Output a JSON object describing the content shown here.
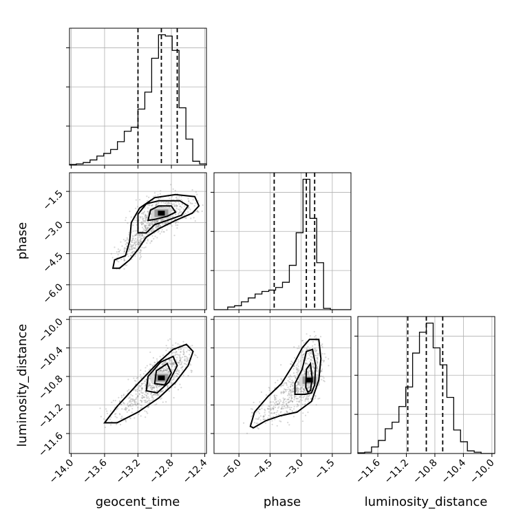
{
  "chart_data": {
    "type": "corner",
    "parameters": [
      "geocent_time",
      "phase",
      "luminosity_distance"
    ],
    "axis_labels": {
      "geocent_time": "geocent_time",
      "phase": "phase",
      "luminosity_distance": "luminosity_distance"
    },
    "ranges": {
      "geocent_time": [
        -14.02,
        -12.38
      ],
      "phase": [
        -7.2,
        -0.6
      ],
      "luminosity_distance": [
        -11.88,
        -9.96
      ]
    },
    "ticks": {
      "geocent_time": [
        -14.0,
        -13.6,
        -13.2,
        -12.8,
        -12.4
      ],
      "phase": [
        -6.0,
        -4.5,
        -3.0,
        -1.5
      ],
      "luminosity_distance": [
        -11.6,
        -11.2,
        -10.8,
        -10.4,
        -10.0
      ]
    },
    "tick_labels": {
      "geocent_time": [
        "−14.0",
        "−13.6",
        "−13.2",
        "−12.8",
        "−12.4"
      ],
      "phase": [
        "−6.0",
        "−4.5",
        "−3.0",
        "−1.5"
      ],
      "luminosity_distance": [
        "−11.6",
        "−11.2",
        "−10.8",
        "−10.4",
        "−10.0"
      ]
    },
    "grid": true,
    "quantiles": {
      "geocent_time": [
        -13.2,
        -12.92,
        -12.73
      ],
      "phase": [
        -4.3,
        -2.75,
        -2.35
      ],
      "luminosity_distance": [
        -11.18,
        -10.92,
        -10.69
      ]
    },
    "histograms": {
      "geocent_time": {
        "edges": [
          -14.02,
          -13.938,
          -13.856,
          -13.774,
          -13.692,
          -13.61,
          -13.528,
          -13.446,
          -13.364,
          -13.282,
          -13.2,
          -13.118,
          -13.036,
          -12.954,
          -12.872,
          -12.79,
          -12.708,
          -12.626,
          -12.544,
          -12.462,
          -12.38
        ],
        "counts": [
          0.5,
          1,
          2,
          4,
          7,
          9,
          12,
          18,
          26,
          29,
          43,
          56,
          82,
          100,
          99,
          88,
          44,
          20,
          3,
          1
        ]
      },
      "phase": {
        "edges": [
          -7.2,
          -6.87,
          -6.54,
          -6.21,
          -5.88,
          -5.55,
          -5.22,
          -4.89,
          -4.56,
          -4.23,
          -3.9,
          -3.57,
          -3.24,
          -2.91,
          -2.58,
          -2.25,
          -1.92,
          -1.59,
          -1.26,
          -0.93,
          -0.6
        ],
        "counts": [
          0,
          0,
          2,
          3,
          6,
          9,
          12,
          14,
          15,
          17,
          21,
          34,
          59,
          100,
          70,
          36,
          1,
          0,
          0,
          0
        ]
      },
      "luminosity_distance": {
        "edges": [
          -11.88,
          -11.784,
          -11.688,
          -11.592,
          -11.496,
          -11.4,
          -11.304,
          -11.208,
          -11.112,
          -11.016,
          -10.92,
          -10.824,
          -10.728,
          -10.632,
          -10.536,
          -10.44,
          -10.344,
          -10.248,
          -10.152,
          -10.056,
          -9.96
        ],
        "counts": [
          0.5,
          1,
          5,
          10,
          19,
          24,
          36,
          51,
          77,
          93,
          100,
          81,
          68,
          43,
          18,
          9,
          2,
          1,
          0,
          0
        ]
      }
    },
    "joint_2d": [
      {
        "x": "geocent_time",
        "y": "phase",
        "peak": [
          -12.92,
          -2.55
        ],
        "contours": [
          [
            [
              -13.08,
              -2.9
            ],
            [
              -13.05,
              -2.4
            ],
            [
              -12.95,
              -2.2
            ],
            [
              -12.8,
              -2.2
            ],
            [
              -12.75,
              -2.5
            ],
            [
              -12.85,
              -2.7
            ],
            [
              -13.0,
              -2.85
            ]
          ],
          [
            [
              -13.2,
              -3.5
            ],
            [
              -13.2,
              -2.6
            ],
            [
              -13.1,
              -2.1
            ],
            [
              -12.95,
              -1.95
            ],
            [
              -12.7,
              -1.95
            ],
            [
              -12.6,
              -2.2
            ],
            [
              -12.68,
              -2.65
            ],
            [
              -12.85,
              -2.9
            ],
            [
              -13.0,
              -3.1
            ],
            [
              -13.1,
              -3.5
            ]
          ],
          [
            [
              -13.5,
              -5.2
            ],
            [
              -13.48,
              -4.8
            ],
            [
              -13.35,
              -4.6
            ],
            [
              -13.3,
              -3.9
            ],
            [
              -13.28,
              -3.0
            ],
            [
              -13.18,
              -2.3
            ],
            [
              -13.0,
              -1.8
            ],
            [
              -12.75,
              -1.65
            ],
            [
              -12.52,
              -1.75
            ],
            [
              -12.47,
              -2.2
            ],
            [
              -12.55,
              -2.55
            ],
            [
              -12.75,
              -2.9
            ],
            [
              -12.95,
              -3.3
            ],
            [
              -13.1,
              -3.7
            ],
            [
              -13.2,
              -4.3
            ],
            [
              -13.3,
              -4.8
            ],
            [
              -13.42,
              -5.2
            ]
          ]
        ]
      },
      {
        "x": "geocent_time",
        "y": "luminosity_distance",
        "peak": [
          -12.92,
          -10.82
        ],
        "contours": [
          [
            [
              -13.0,
              -10.9
            ],
            [
              -12.98,
              -10.72
            ],
            [
              -12.85,
              -10.62
            ],
            [
              -12.8,
              -10.75
            ],
            [
              -12.88,
              -10.92
            ]
          ],
          [
            [
              -13.1,
              -11.0
            ],
            [
              -13.08,
              -10.8
            ],
            [
              -12.93,
              -10.6
            ],
            [
              -12.78,
              -10.52
            ],
            [
              -12.73,
              -10.65
            ],
            [
              -12.83,
              -10.88
            ],
            [
              -12.97,
              -11.03
            ]
          ],
          [
            [
              -13.6,
              -11.45
            ],
            [
              -13.45,
              -11.22
            ],
            [
              -13.2,
              -10.9
            ],
            [
              -12.97,
              -10.62
            ],
            [
              -12.78,
              -10.42
            ],
            [
              -12.62,
              -10.35
            ],
            [
              -12.54,
              -10.45
            ],
            [
              -12.6,
              -10.65
            ],
            [
              -12.75,
              -10.88
            ],
            [
              -12.95,
              -11.1
            ],
            [
              -13.2,
              -11.3
            ],
            [
              -13.45,
              -11.45
            ]
          ]
        ]
      },
      {
        "x": "phase",
        "y": "luminosity_distance",
        "peak": [
          -2.6,
          -10.85
        ],
        "contours": [
          [
            [
              -2.78,
              -10.95
            ],
            [
              -2.75,
              -10.7
            ],
            [
              -2.55,
              -10.62
            ],
            [
              -2.47,
              -10.82
            ],
            [
              -2.55,
              -11.0
            ],
            [
              -2.68,
              -11.02
            ]
          ],
          [
            [
              -3.3,
              -11.05
            ],
            [
              -3.3,
              -10.9
            ],
            [
              -2.95,
              -10.7
            ],
            [
              -2.75,
              -10.45
            ],
            [
              -2.45,
              -10.42
            ],
            [
              -2.3,
              -10.65
            ],
            [
              -2.35,
              -10.92
            ],
            [
              -2.5,
              -11.03
            ],
            [
              -2.8,
              -11.05
            ]
          ],
          [
            [
              -5.45,
              -11.5
            ],
            [
              -5.25,
              -11.3
            ],
            [
              -4.6,
              -11.08
            ],
            [
              -3.95,
              -10.9
            ],
            [
              -3.35,
              -10.62
            ],
            [
              -2.95,
              -10.4
            ],
            [
              -2.6,
              -10.28
            ],
            [
              -2.15,
              -10.28
            ],
            [
              -2.05,
              -10.55
            ],
            [
              -2.15,
              -10.85
            ],
            [
              -2.5,
              -11.15
            ],
            [
              -3.2,
              -11.3
            ],
            [
              -4.0,
              -11.35
            ],
            [
              -4.7,
              -11.42
            ],
            [
              -5.3,
              -11.52
            ]
          ]
        ]
      }
    ]
  }
}
